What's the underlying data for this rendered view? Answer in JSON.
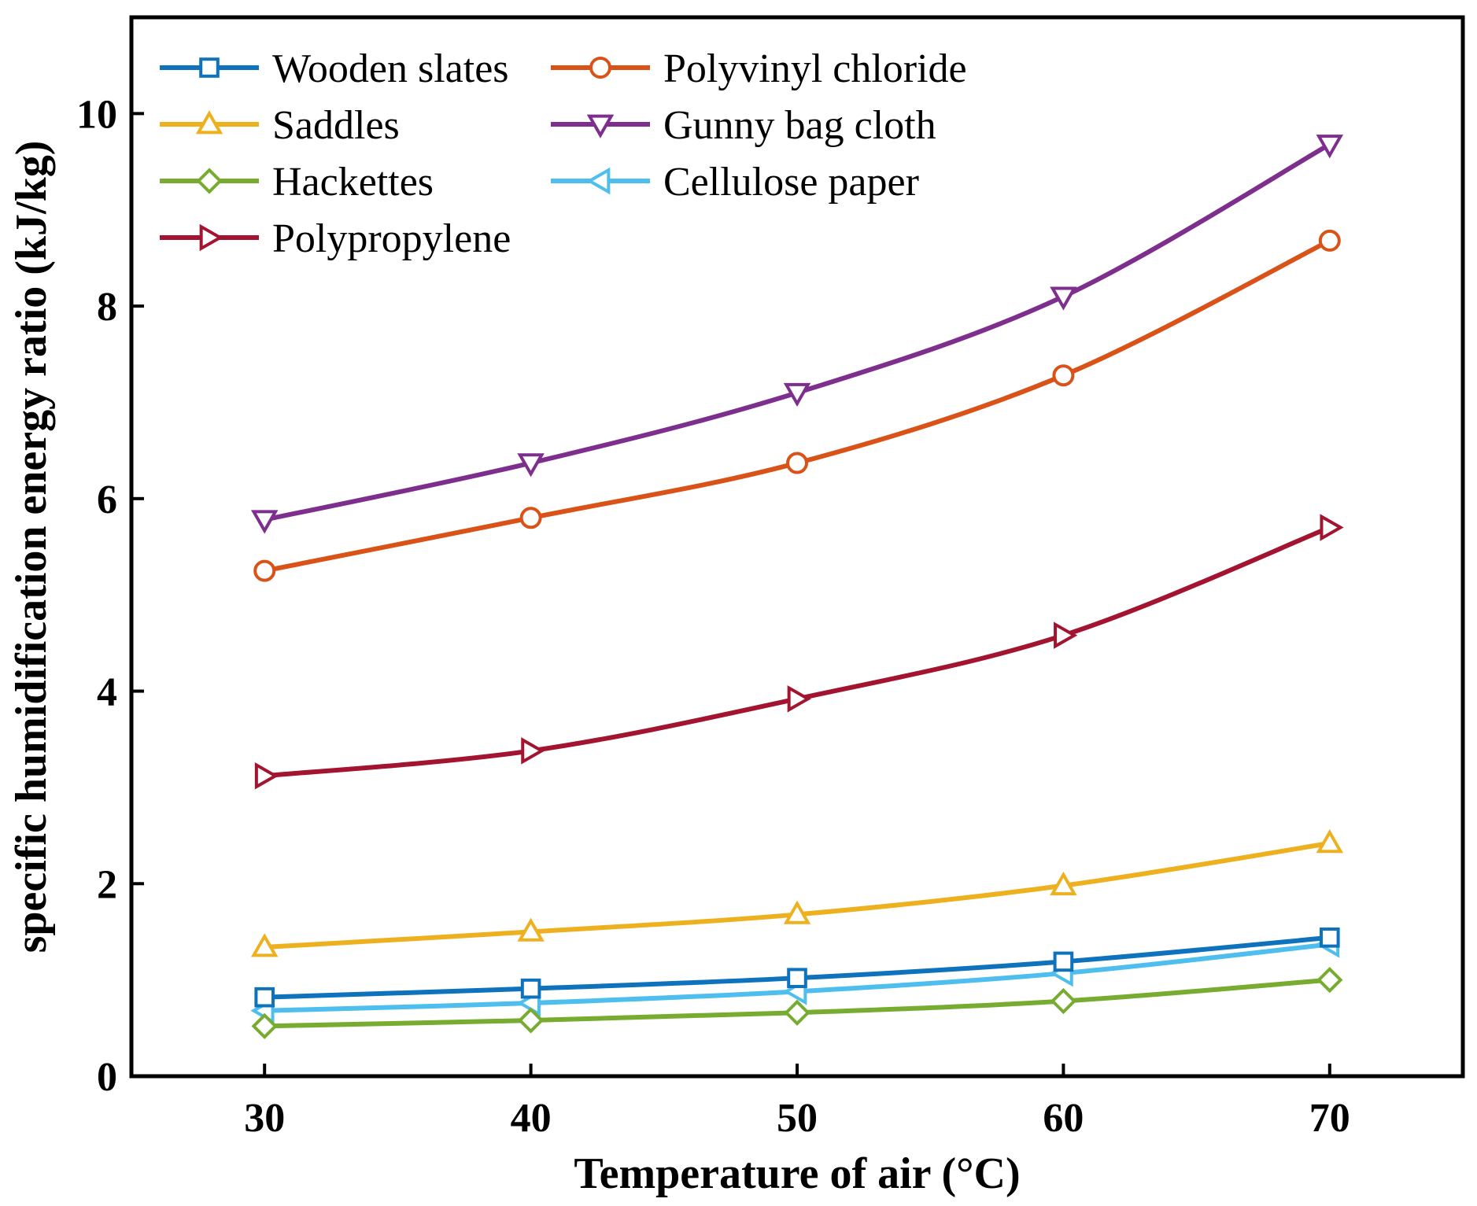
{
  "chart_data": {
    "type": "line",
    "title": "",
    "xlabel": "Temperature of air (°C)",
    "ylabel": "specific humidification energy ratio (kJ/kg)",
    "x": [
      30,
      40,
      50,
      60,
      70
    ],
    "xlim": [
      25,
      75
    ],
    "ylim": [
      0,
      11
    ],
    "xticks": [
      30,
      40,
      50,
      60,
      70
    ],
    "yticks": [
      0,
      2,
      4,
      6,
      8,
      10
    ],
    "grid": false,
    "legend_position": "top-left",
    "series": [
      {
        "name": "Wooden slates",
        "color": "#0E72BD",
        "marker": "square",
        "values": [
          0.82,
          0.91,
          1.02,
          1.19,
          1.44
        ]
      },
      {
        "name": "Polyvinyl chloride",
        "color": "#D95319",
        "marker": "circle",
        "values": [
          5.25,
          5.8,
          6.37,
          7.28,
          8.68
        ]
      },
      {
        "name": "Saddles",
        "color": "#EDB120",
        "marker": "triangle-up",
        "values": [
          1.34,
          1.5,
          1.68,
          1.98,
          2.42
        ]
      },
      {
        "name": "Gunny bag cloth",
        "color": "#7E2F8E",
        "marker": "triangle-down",
        "values": [
          5.78,
          6.37,
          7.1,
          8.1,
          9.68
        ]
      },
      {
        "name": "Hackettes",
        "color": "#77AC30",
        "marker": "diamond",
        "values": [
          0.52,
          0.58,
          0.66,
          0.78,
          1.0
        ]
      },
      {
        "name": "Cellulose paper",
        "color": "#4DBEEE",
        "marker": "triangle-left",
        "values": [
          0.68,
          0.76,
          0.88,
          1.07,
          1.37
        ]
      },
      {
        "name": "Polypropylene",
        "color": "#A2142F",
        "marker": "triangle-right",
        "values": [
          3.12,
          3.38,
          3.92,
          4.58,
          5.7
        ]
      }
    ]
  }
}
